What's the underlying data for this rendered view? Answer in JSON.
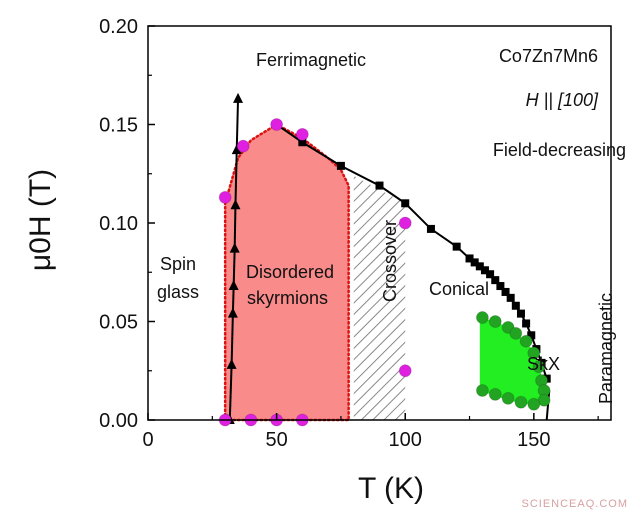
{
  "chart_data": {
    "type": "scatter",
    "xlabel": "T (K)",
    "ylabel": "μ0H (T)",
    "xlim": [
      0,
      180
    ],
    "ylim": [
      0,
      0.2
    ],
    "x_ticks": [
      "0",
      "50",
      "100",
      "150"
    ],
    "y_ticks": [
      "0.00",
      "0.05",
      "0.10",
      "0.15",
      "0.20"
    ],
    "title_lines": [
      "Co7Zn7Mn6",
      "H || [100]",
      "Field-decreasing"
    ],
    "regions": {
      "ferrimagnetic": "Ferrimagnetic",
      "spin_glass_1": "Spin",
      "spin_glass_2": "glass",
      "disordered_1": "Disordered",
      "disordered_2": "skyrmions",
      "crossover": "Crossover",
      "conical": "Conical",
      "skx": "SkX",
      "paramagnetic": "Paramagnetic"
    },
    "series": [
      {
        "marker": "square",
        "color": "#000000",
        "points": [
          [
            50,
            0.15
          ],
          [
            60,
            0.141
          ],
          [
            75,
            0.129
          ],
          [
            90,
            0.119
          ],
          [
            100,
            0.11
          ],
          [
            110,
            0.097
          ],
          [
            120,
            0.088
          ],
          [
            125,
            0.082
          ],
          [
            127,
            0.08
          ],
          [
            129,
            0.078
          ],
          [
            131,
            0.076
          ],
          [
            133,
            0.074
          ],
          [
            135,
            0.071
          ],
          [
            137,
            0.068
          ],
          [
            139,
            0.065
          ],
          [
            141,
            0.062
          ],
          [
            143,
            0.058
          ],
          [
            145,
            0.054
          ],
          [
            147,
            0.049
          ],
          [
            149,
            0.043
          ],
          [
            151,
            0.036
          ],
          [
            153,
            0.029
          ],
          [
            155,
            0.021
          ]
        ]
      },
      {
        "marker": "triangle",
        "color": "#000000",
        "points": [
          [
            31,
            0
          ],
          [
            31.8,
            0.0
          ],
          [
            32.5,
            0.028
          ],
          [
            33,
            0.054
          ],
          [
            33.3,
            0.068
          ],
          [
            33.7,
            0.087
          ],
          [
            34,
            0.109
          ],
          [
            34.5,
            0.137
          ],
          [
            35,
            0.163
          ]
        ]
      },
      {
        "marker": "circle",
        "color": "#e020e0",
        "points": [
          [
            30,
            0.113
          ],
          [
            37,
            0.139
          ],
          [
            50,
            0.15
          ],
          [
            60,
            0.145
          ],
          [
            30,
            0
          ],
          [
            40,
            0
          ],
          [
            50,
            0
          ],
          [
            60,
            0
          ],
          [
            100,
            0.1
          ],
          [
            100,
            0.025
          ]
        ]
      },
      {
        "marker": "circle",
        "color": "#22a422",
        "points": [
          [
            130,
            0.052
          ],
          [
            135,
            0.05
          ],
          [
            140,
            0.047
          ],
          [
            143,
            0.044
          ],
          [
            147,
            0.04
          ],
          [
            150,
            0.034
          ],
          [
            152,
            0.027
          ],
          [
            153,
            0.02
          ],
          [
            154,
            0.015
          ],
          [
            154,
            0.01
          ],
          [
            150,
            0.008
          ],
          [
            145,
            0.009
          ],
          [
            140,
            0.011
          ],
          [
            135,
            0.013
          ],
          [
            130,
            0.015
          ]
        ]
      }
    ],
    "phase_boundaries": {
      "disordered_top": [
        [
          30,
          0
        ],
        [
          30,
          0.11
        ],
        [
          35,
          0.133
        ],
        [
          40,
          0.142
        ],
        [
          50,
          0.15
        ],
        [
          60,
          0.143
        ],
        [
          70,
          0.133
        ],
        [
          75,
          0.127
        ],
        [
          78,
          0.119
        ],
        [
          78,
          0
        ]
      ],
      "crossover_box": [
        [
          80,
          0
        ],
        [
          80,
          0.124
        ],
        [
          100,
          0.11
        ],
        [
          100,
          0
        ]
      ],
      "skx_region": [
        [
          129,
          0.052
        ],
        [
          135,
          0.05
        ],
        [
          140,
          0.047
        ],
        [
          145,
          0.042
        ],
        [
          150,
          0.035
        ],
        [
          152,
          0.027
        ],
        [
          154,
          0.018
        ],
        [
          154,
          0.009
        ],
        [
          147,
          0.008
        ],
        [
          140,
          0.01
        ],
        [
          129,
          0.015
        ]
      ],
      "skx_boundary_line": [
        [
          155,
          0
        ],
        [
          156,
          0.015
        ]
      ]
    },
    "colors": {
      "disordered_fill": "#f98b8b",
      "disordered_edge": "#dd1111",
      "crossover_hatch": "#888888",
      "skx_fill": "#22ee22",
      "skx_marker": "#22a422",
      "magenta": "#e020e0"
    },
    "watermark": "SCIENCEAQ.COM"
  }
}
